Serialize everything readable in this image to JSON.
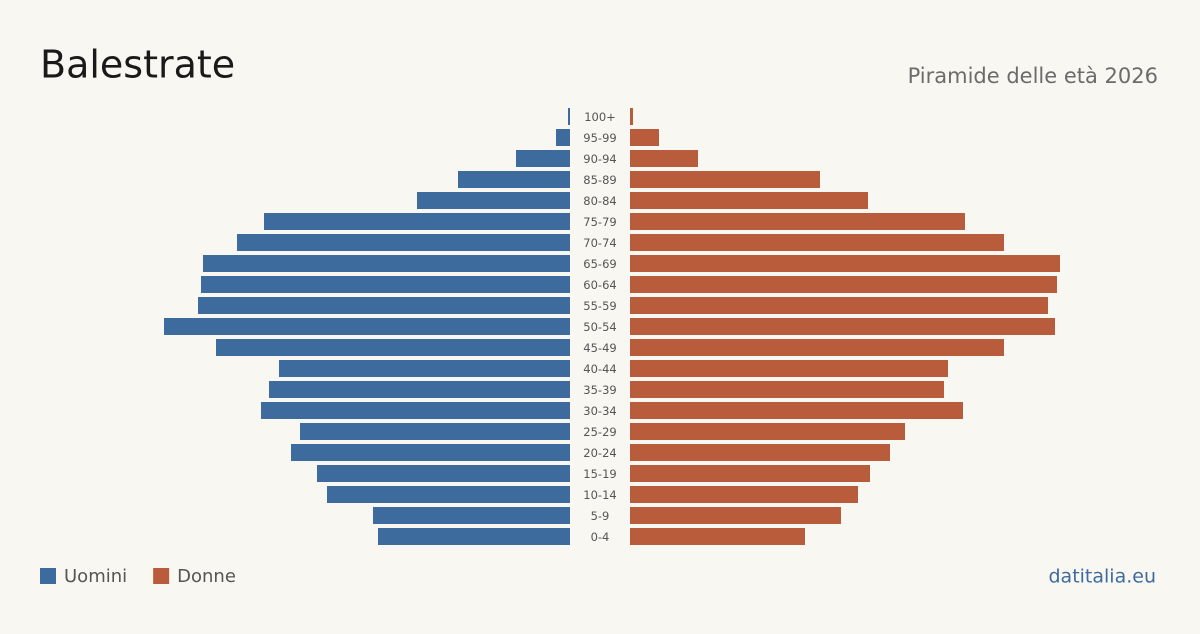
{
  "chart_data": {
    "type": "pyramid",
    "title": "Balestrate",
    "subtitle": "Piramide delle età 2026",
    "source": "datitalia.eu",
    "categories": [
      "100+",
      "95-99",
      "90-94",
      "85-89",
      "80-84",
      "75-79",
      "70-74",
      "65-69",
      "60-64",
      "55-59",
      "50-54",
      "45-49",
      "40-44",
      "35-39",
      "30-34",
      "25-29",
      "20-24",
      "15-19",
      "10-14",
      "5-9",
      "0-4"
    ],
    "series": [
      {
        "name": "Uomini",
        "color": "#3d6b9e",
        "side": "left",
        "values": [
          2,
          14,
          54,
          112,
          153,
          306,
          333,
          367,
          369,
          372,
          406,
          354,
          291,
          301,
          309,
          270,
          279,
          253,
          243,
          197,
          192
        ]
      },
      {
        "name": "Donne",
        "color": "#b85c3c",
        "side": "right",
        "values": [
          3,
          29,
          68,
          190,
          238,
          335,
          374,
          430,
          427,
          418,
          425,
          374,
          318,
          314,
          333,
          275,
          260,
          240,
          228,
          211,
          175
        ]
      }
    ],
    "xlim": [
      0,
      430
    ]
  }
}
